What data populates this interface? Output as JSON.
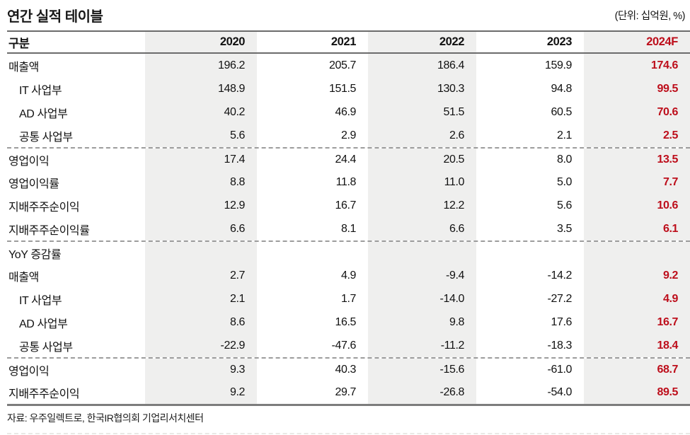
{
  "header": {
    "title": "연간 실적 테이블",
    "unit_label": "(단위: 십억원, %)"
  },
  "table": {
    "columns": [
      "구분",
      "2020",
      "2021",
      "2022",
      "2023",
      "2024F"
    ],
    "striped_value_indexes": [
      0,
      2,
      4
    ],
    "forecast_value_index": 4,
    "rows": [
      {
        "label": "매출액",
        "indent": false,
        "divider_before": false,
        "values": [
          "196.2",
          "205.7",
          "186.4",
          "159.9",
          "174.6"
        ]
      },
      {
        "label": "IT 사업부",
        "indent": true,
        "divider_before": false,
        "values": [
          "148.9",
          "151.5",
          "130.3",
          "94.8",
          "99.5"
        ]
      },
      {
        "label": "AD 사업부",
        "indent": true,
        "divider_before": false,
        "values": [
          "40.2",
          "46.9",
          "51.5",
          "60.5",
          "70.6"
        ]
      },
      {
        "label": "공통 사업부",
        "indent": true,
        "divider_before": false,
        "values": [
          "5.6",
          "2.9",
          "2.6",
          "2.1",
          "2.5"
        ]
      },
      {
        "label": "영업이익",
        "indent": false,
        "divider_before": true,
        "values": [
          "17.4",
          "24.4",
          "20.5",
          "8.0",
          "13.5"
        ]
      },
      {
        "label": "영업이익률",
        "indent": false,
        "divider_before": false,
        "values": [
          "8.8",
          "11.8",
          "11.0",
          "5.0",
          "7.7"
        ]
      },
      {
        "label": "지배주주순이익",
        "indent": false,
        "divider_before": false,
        "values": [
          "12.9",
          "16.7",
          "12.2",
          "5.6",
          "10.6"
        ]
      },
      {
        "label": "지배주주순이익률",
        "indent": false,
        "divider_before": false,
        "values": [
          "6.6",
          "8.1",
          "6.6",
          "3.5",
          "6.1"
        ]
      },
      {
        "label": "YoY 증감률",
        "indent": false,
        "divider_before": true,
        "section_label": true,
        "values": [
          "",
          "",
          "",
          "",
          ""
        ]
      },
      {
        "label": "매출액",
        "indent": false,
        "divider_before": false,
        "values": [
          "2.7",
          "4.9",
          "-9.4",
          "-14.2",
          "9.2"
        ]
      },
      {
        "label": "IT 사업부",
        "indent": true,
        "divider_before": false,
        "values": [
          "2.1",
          "1.7",
          "-14.0",
          "-27.2",
          "4.9"
        ]
      },
      {
        "label": "AD 사업부",
        "indent": true,
        "divider_before": false,
        "values": [
          "8.6",
          "16.5",
          "9.8",
          "17.6",
          "16.7"
        ]
      },
      {
        "label": "공통 사업부",
        "indent": true,
        "divider_before": false,
        "values": [
          "-22.9",
          "-47.6",
          "-11.2",
          "-18.3",
          "18.4"
        ]
      },
      {
        "label": "영업이익",
        "indent": false,
        "divider_before": true,
        "values": [
          "9.3",
          "40.3",
          "-15.6",
          "-61.0",
          "68.7"
        ]
      },
      {
        "label": "지배주주순이익",
        "indent": false,
        "divider_before": false,
        "values": [
          "9.2",
          "29.7",
          "-26.8",
          "-54.0",
          "89.5"
        ]
      }
    ]
  },
  "footer": {
    "source": "자료: 우주일렉트로, 한국IR협의회 기업리서치센터"
  },
  "colors": {
    "accent_red": "#bd0e1b",
    "stripe_gray": "#efefee"
  }
}
